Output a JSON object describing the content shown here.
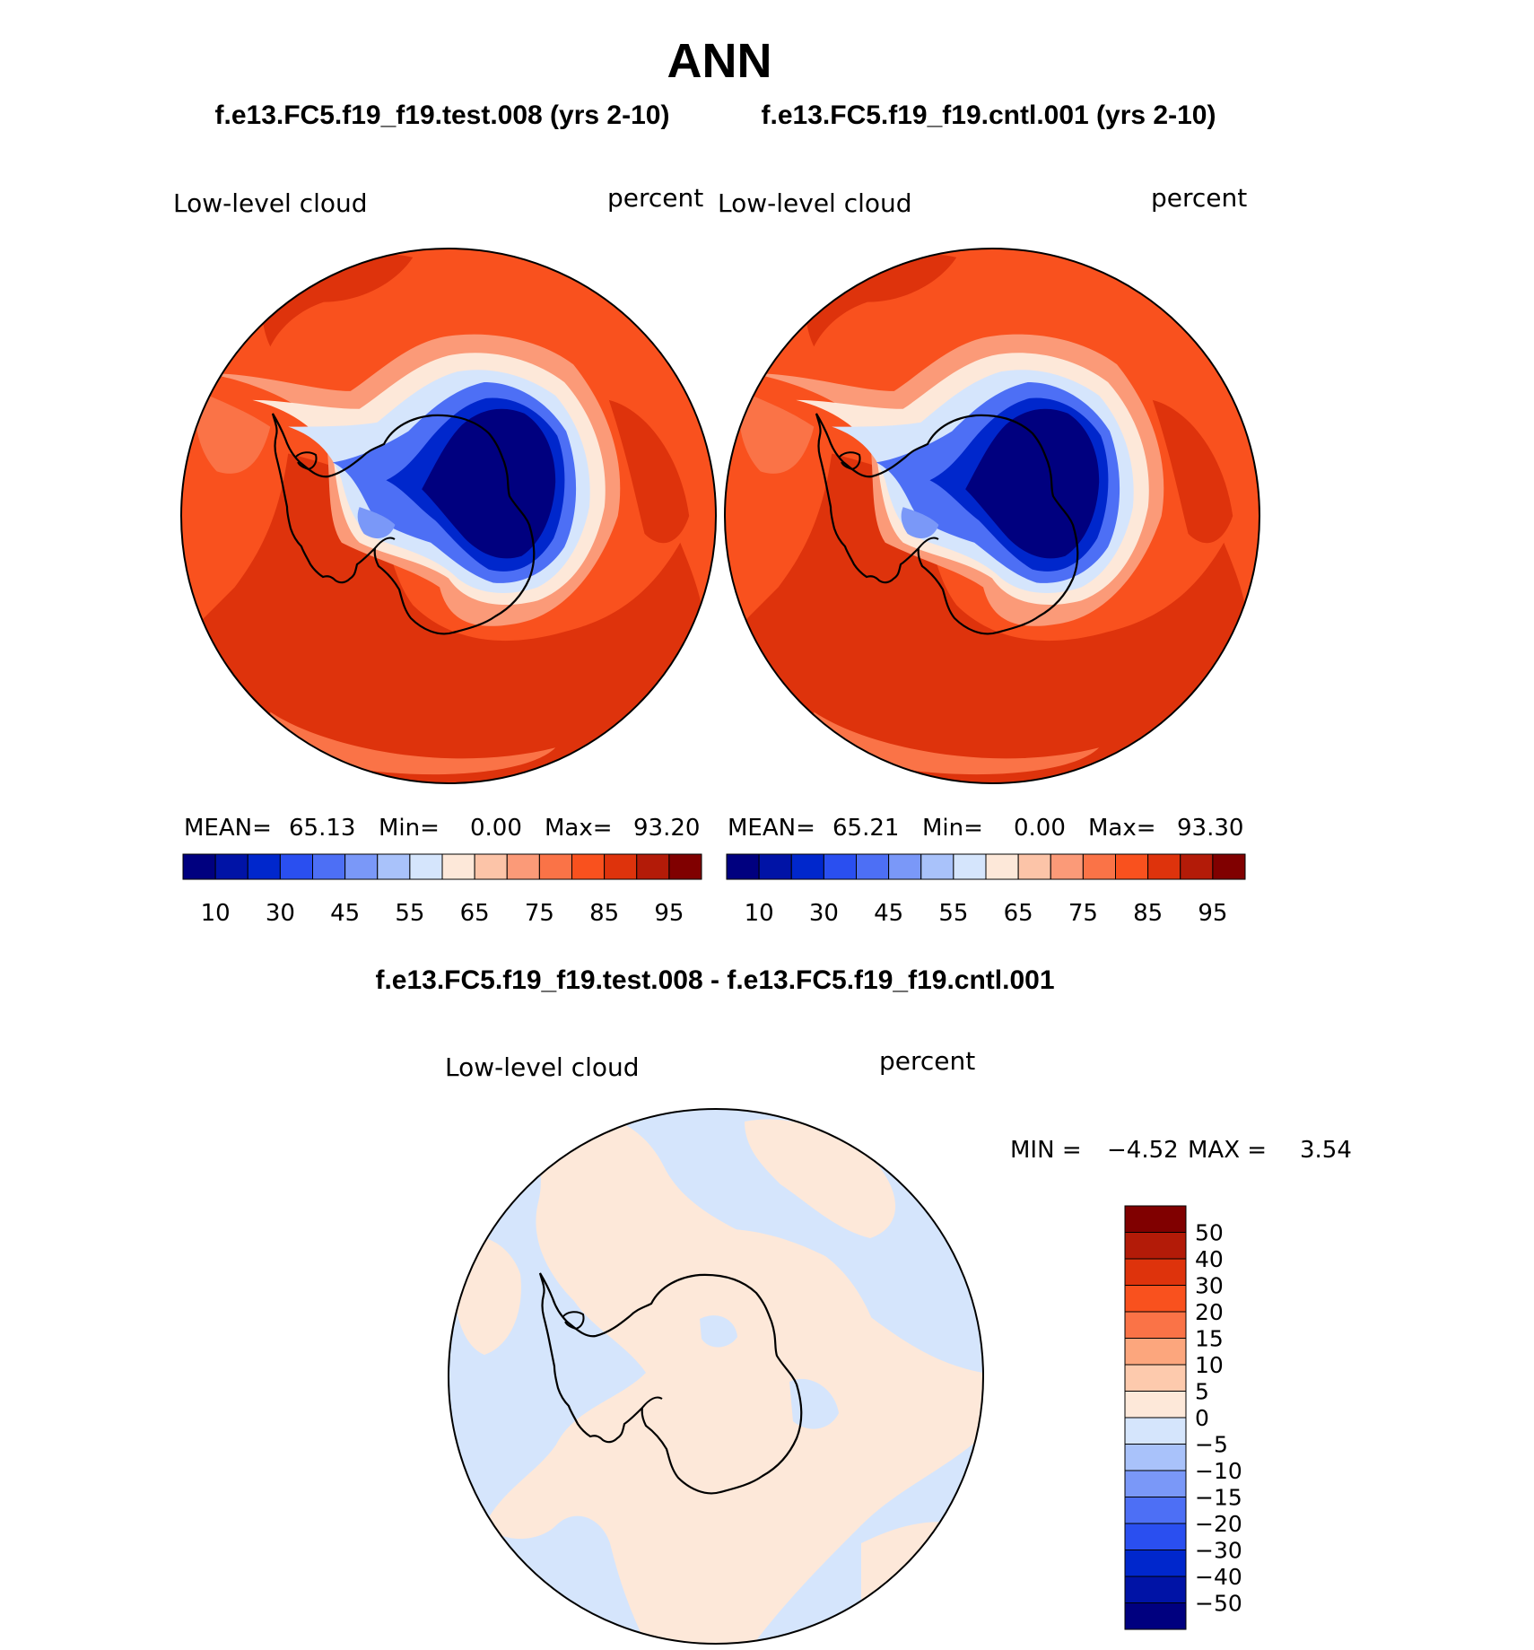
{
  "title": "ANN",
  "panels": [
    {
      "case": "f.e13.FC5.f19_f19.test.008 (yrs 2-10)",
      "variable": "Low-level cloud",
      "units": "percent",
      "stats": {
        "mean_label": "MEAN=",
        "mean": "65.13",
        "min_label": "Min=",
        "min": "0.00",
        "max_label": "Max=",
        "max": "93.20"
      }
    },
    {
      "case": "f.e13.FC5.f19_f19.cntl.001 (yrs 2-10)",
      "variable": "Low-level cloud",
      "units": "percent",
      "stats": {
        "mean_label": "MEAN=",
        "mean": "65.21",
        "min_label": "Min=",
        "min": "0.00",
        "max_label": "Max=",
        "max": "93.30"
      }
    }
  ],
  "abs_colorbar": {
    "colors": [
      "#00007f",
      "#0013a6",
      "#0027cc",
      "#2a4ff0",
      "#4d6ff5",
      "#7a98f8",
      "#a9c2fa",
      "#d5e5fc",
      "#fde8d9",
      "#fcc4a8",
      "#fb9a78",
      "#fa7347",
      "#f9511e",
      "#de330c",
      "#b31b08",
      "#800000"
    ],
    "tick_labels": [
      "10",
      "30",
      "45",
      "55",
      "65",
      "75",
      "85",
      "95"
    ]
  },
  "diff": {
    "title": "f.e13.FC5.f19_f19.test.008 - f.e13.FC5.f19_f19.cntl.001",
    "variable": "Low-level cloud",
    "units": "percent",
    "min_label": "MIN =",
    "min": "−4.52",
    "max_label": "MAX =",
    "max": "3.54",
    "colorbar": {
      "colors": [
        "#800000",
        "#b31b08",
        "#de330c",
        "#f9511e",
        "#fa7347",
        "#fca67d",
        "#fdcaad",
        "#fde8d9",
        "#d5e5fc",
        "#a9c2fa",
        "#7a98f8",
        "#4d6ff5",
        "#2a4ff0",
        "#0027cc",
        "#0013a6",
        "#00007f"
      ],
      "tick_labels": [
        "50",
        "40",
        "30",
        "20",
        "15",
        "10",
        "5",
        "0",
        "−5",
        "−10",
        "−15",
        "−20",
        "−30",
        "−40",
        "−50"
      ]
    }
  }
}
